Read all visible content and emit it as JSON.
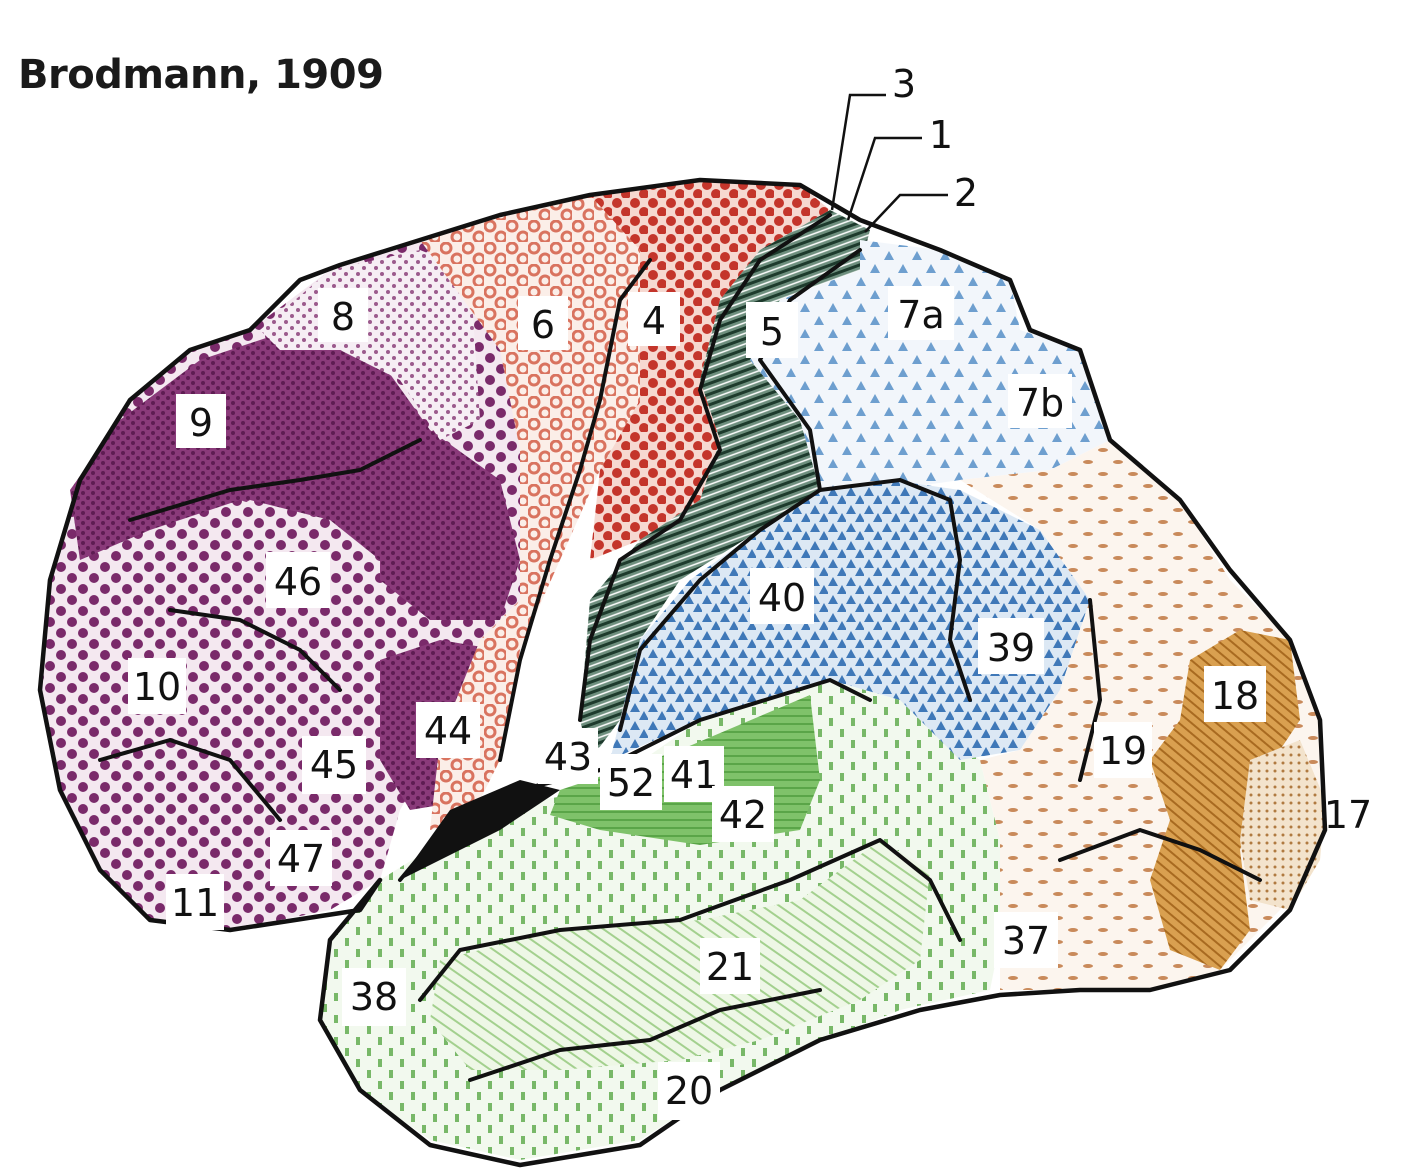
{
  "title": "Brodmann, 1909",
  "areas": {
    "a3": "3",
    "a1": "1",
    "a2": "2",
    "a8": "8",
    "a6": "6",
    "a4": "4",
    "a5": "5",
    "a7a": "7a",
    "a7b": "7b",
    "a9": "9",
    "a46": "46",
    "a10": "10",
    "a45": "45",
    "a44": "44",
    "a43": "43",
    "a52": "52",
    "a41": "41",
    "a42": "42",
    "a40": "40",
    "a39": "39",
    "a19": "19",
    "a18": "18",
    "a17": "17",
    "a47": "47",
    "a11": "11",
    "a38": "38",
    "a21": "21",
    "a20": "20",
    "a37": "37"
  },
  "colors": {
    "prefrontal_purple": "#7a2a6a",
    "premotor_salmon": "#d9735f",
    "motor_red": "#c4352b",
    "somatosensory_green": "#2f5a48",
    "parietal_blue": "#4f86c0",
    "parietal_light_blue": "#8fb6dc",
    "temporal_green": "#78b868",
    "occipital_tan": "#d9a46c",
    "area18_orange": "#c98a3a"
  }
}
